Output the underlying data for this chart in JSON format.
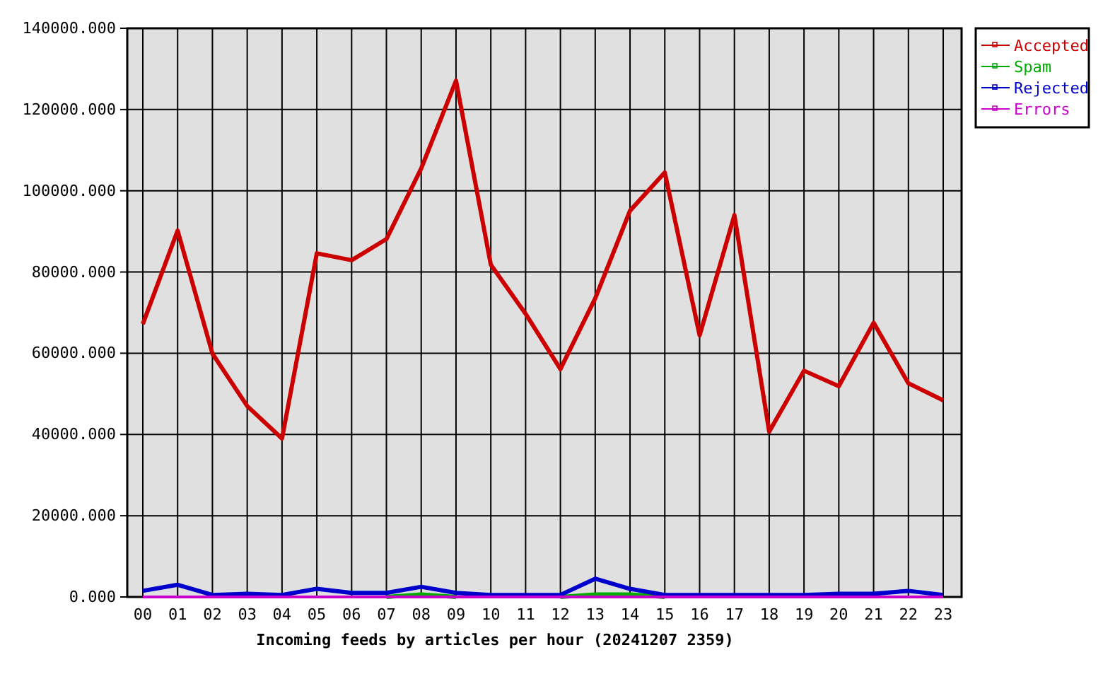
{
  "chart_data": {
    "type": "line",
    "xlabel": "Incoming feeds by articles per hour (20241207 2359)",
    "categories": [
      "00",
      "01",
      "02",
      "03",
      "04",
      "05",
      "06",
      "07",
      "08",
      "09",
      "10",
      "11",
      "12",
      "13",
      "14",
      "15",
      "16",
      "17",
      "18",
      "19",
      "20",
      "21",
      "22",
      "23"
    ],
    "series": [
      {
        "name": "Accepted",
        "color": "#cc0000",
        "values": [
          67200,
          90200,
          59900,
          47000,
          39000,
          84600,
          82900,
          88100,
          105500,
          127100,
          81800,
          69700,
          56100,
          73500,
          95100,
          104500,
          64400,
          94000,
          40700,
          55700,
          51900,
          67500,
          52600,
          48400
        ]
      },
      {
        "name": "Spam",
        "color": "#00aa00",
        "values": [
          null,
          null,
          null,
          null,
          null,
          null,
          null,
          0,
          600,
          0,
          null,
          null,
          0,
          600,
          600,
          0,
          null,
          null,
          null,
          null,
          null,
          null,
          null,
          null
        ]
      },
      {
        "name": "Rejected",
        "color": "#0000cc",
        "values": [
          1500,
          3000,
          500,
          800,
          500,
          2000,
          1000,
          1000,
          2500,
          1000,
          500,
          500,
          500,
          4500,
          2000,
          500,
          500,
          500,
          500,
          500,
          800,
          800,
          1500,
          500
        ]
      },
      {
        "name": "Errors",
        "color": "#cc00cc",
        "values": [
          0,
          0,
          0,
          0,
          0,
          0,
          0,
          0,
          0,
          0,
          0,
          0,
          0,
          0,
          0,
          0,
          0,
          0,
          0,
          0,
          0,
          0,
          0,
          0
        ]
      }
    ],
    "ylim": [
      0,
      140000
    ],
    "yticks": [
      {
        "value": 0,
        "label": "0.000"
      },
      {
        "value": 20000,
        "label": "20000.000"
      },
      {
        "value": 40000,
        "label": "40000.000"
      },
      {
        "value": 60000,
        "label": "60000.000"
      },
      {
        "value": 80000,
        "label": "80000.000"
      },
      {
        "value": 100000,
        "label": "100000.000"
      },
      {
        "value": 120000,
        "label": "120000.000"
      },
      {
        "value": 140000,
        "label": "140000.000"
      }
    ],
    "grid": true,
    "legend": "top right",
    "marker": "none",
    "line_style": "solid"
  }
}
